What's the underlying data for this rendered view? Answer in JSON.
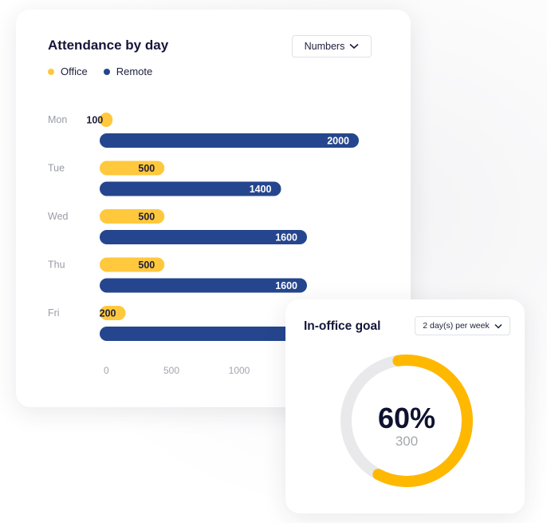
{
  "attendance": {
    "title": "Attendance by day",
    "dropdown_label": "Numbers",
    "legend": [
      {
        "label": "Office",
        "color": "#FFC83D"
      },
      {
        "label": "Remote",
        "color": "#25468E"
      }
    ]
  },
  "chart_data": {
    "type": "bar",
    "orientation": "horizontal",
    "categories": [
      "Mon",
      "Tue",
      "Wed",
      "Thu",
      "Fri"
    ],
    "series": [
      {
        "name": "Office",
        "color": "#FFC83D",
        "values": [
          100,
          500,
          500,
          500,
          200
        ],
        "value_labels": [
          "100",
          "500",
          "500",
          "500",
          "200"
        ]
      },
      {
        "name": "Remote",
        "color": "#25468E",
        "values": [
          2000,
          1400,
          1600,
          1600,
          2000
        ],
        "value_labels": [
          "2000",
          "1400",
          "1600",
          "1600",
          ""
        ]
      }
    ],
    "x_ticks": [
      "0",
      "500",
      "1000"
    ],
    "xlim": [
      0,
      2000
    ],
    "grid": false,
    "legend_position": "top-left"
  },
  "goal": {
    "title": "In-office goal",
    "dropdown_label": "2 day(s) per week",
    "percent_label": "60%",
    "percent": 0.6,
    "count_label": "300",
    "ring_color": "#FFB800",
    "track_color": "#E9E9EC"
  }
}
